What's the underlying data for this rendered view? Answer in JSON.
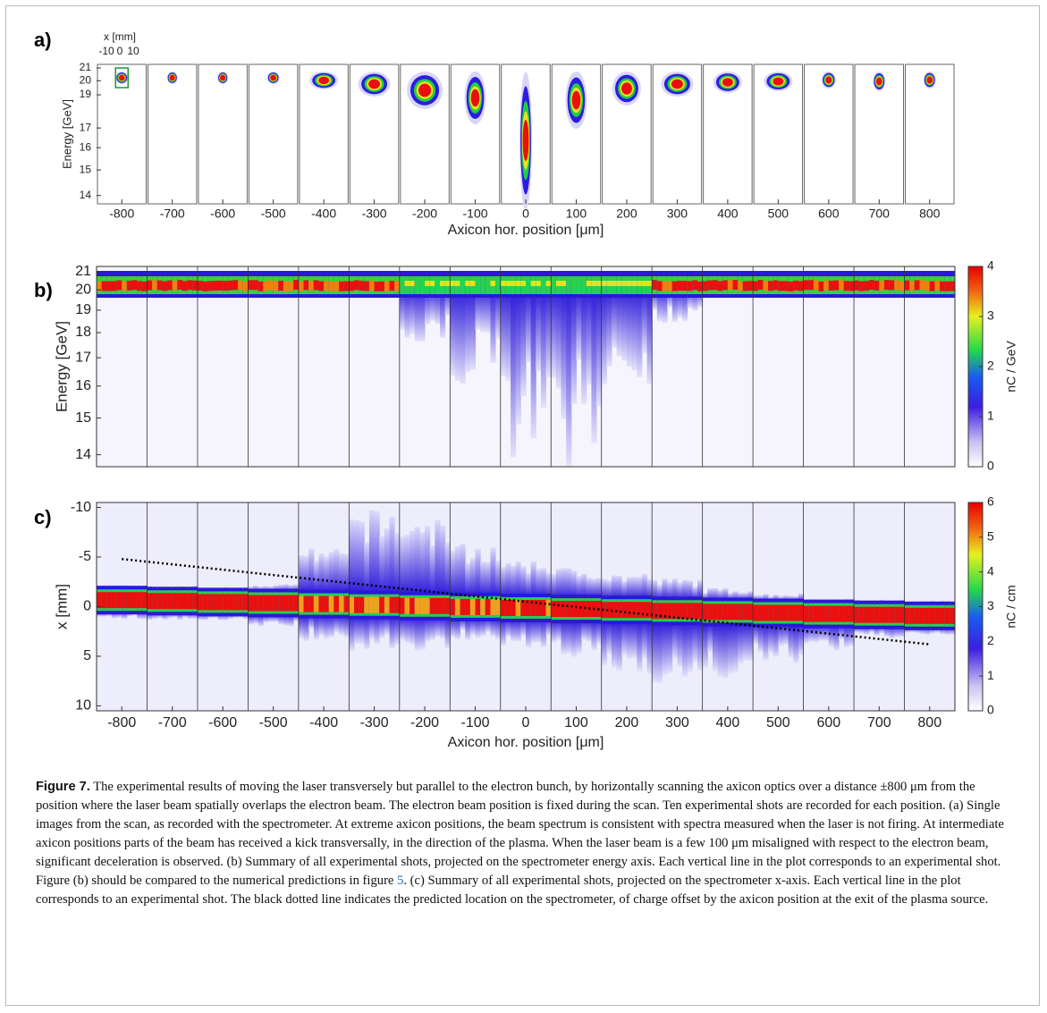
{
  "figure": {
    "x_axis": {
      "label": "Axicon hor. position [μm]",
      "xlim": [
        -850,
        850
      ],
      "xticks": [
        -800,
        -700,
        -600,
        -500,
        -400,
        -300,
        -200,
        -100,
        0,
        100,
        200,
        300,
        400,
        500,
        600,
        700,
        800
      ]
    },
    "panel_a": {
      "label": "a)",
      "ylabel": "Energy [GeV]",
      "yscale": "reciprocal",
      "ylim": [
        13.7,
        21.3
      ],
      "yticks": [
        21,
        20,
        19,
        17,
        16,
        15,
        14
      ],
      "inset_xlabel": "x [mm]",
      "inset_xticks": [
        -10,
        0,
        10
      ]
    },
    "panel_b": {
      "label": "b)",
      "ylabel": "Energy [GeV]",
      "yscale": "reciprocal",
      "ylim": [
        13.7,
        21.3
      ],
      "yticks": [
        21,
        20,
        19,
        18,
        17,
        16,
        15,
        14
      ],
      "colorbar": {
        "label": "nC / GeV",
        "lim": [
          0,
          4
        ],
        "ticks": [
          0,
          1,
          2,
          3,
          4
        ]
      }
    },
    "panel_c": {
      "label": "c)",
      "ylabel": "x [mm]",
      "y_inverted": true,
      "ylim": [
        -10.5,
        10.5
      ],
      "yticks": [
        -10,
        -5,
        0,
        5,
        10
      ],
      "colorbar": {
        "label": "nC / cm",
        "lim": [
          0,
          6
        ],
        "ticks": [
          0,
          1,
          2,
          3,
          4,
          5,
          6
        ]
      },
      "prediction_line": {
        "x": [
          -800,
          800
        ],
        "y": [
          -4.8,
          3.8
        ]
      }
    },
    "caption": {
      "label": "Figure 7.",
      "text_1": " The experimental results of moving the laser transversely but parallel to the electron bunch, by horizontally scanning the axicon optics over a distance ±800 μm from the position where the laser beam spatially overlaps the electron beam. The electron beam position is fixed during the scan. Ten experimental shots are recorded for each position. (a) Single images from the scan, as recorded with the spectrometer. At extreme axicon positions, the beam spectrum is consistent with spectra measured when the laser is not firing. At intermediate axicon positions parts of the beam has received a kick transversally, in the direction of the plasma. When the laser beam is a few 100 μm misaligned with respect to the electron beam, significant deceleration is observed. (b) Summary of all experimental shots, projected on the spectrometer energy axis. Each vertical line in the plot corresponds to an experimental shot. Figure (b) should be compared to the numerical predictions in figure ",
      "ref": "5",
      "text_2": ". (c) Summary of all experimental shots, projected on the spectrometer x-axis. Each vertical line in the plot corresponds to an experimental shot. The black dotted line indicates the predicted location on the spectrometer, of charge offset by the axicon position at the exit of the plasma source."
    }
  }
}
